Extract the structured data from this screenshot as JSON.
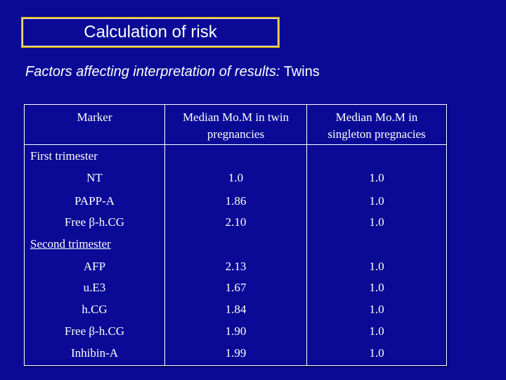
{
  "slide": {
    "title": "Calculation of risk",
    "subtitle_italic": "Factors affecting interpretation of results:",
    "subtitle_normal": " Twins"
  },
  "table": {
    "headers": {
      "marker": "Marker",
      "twin": "Median Mo.M in twin pregnancies",
      "twin_line1": "Median Mo.M in twin",
      "twin_line2": "pregnancies",
      "singleton_line1": "Median Mo.M in",
      "singleton_line2": "singleton pregnacies"
    },
    "first_trimester_label": "First trimester",
    "second_trimester_label": "Second trimester",
    "first_trimester_rows": [
      {
        "marker": "NT",
        "twin": "1.0",
        "singleton": "1.0"
      },
      {
        "marker": "PAPP-A",
        "twin": "1.86",
        "singleton": "1.0"
      },
      {
        "marker": "Free β-h.CG",
        "twin": "2.10",
        "singleton": "1.0"
      }
    ],
    "second_trimester_rows": [
      {
        "marker": "AFP",
        "twin": "2.13",
        "singleton": "1.0"
      },
      {
        "marker": "u.E3",
        "twin": "1.67",
        "singleton": "1.0"
      },
      {
        "marker": "h.CG",
        "twin": "1.84",
        "singleton": "1.0"
      },
      {
        "marker": "Free β-h.CG",
        "twin": "1.90",
        "singleton": "1.0"
      },
      {
        "marker": "Inhibin-A",
        "twin": "1.99",
        "singleton": "1.0"
      }
    ]
  }
}
